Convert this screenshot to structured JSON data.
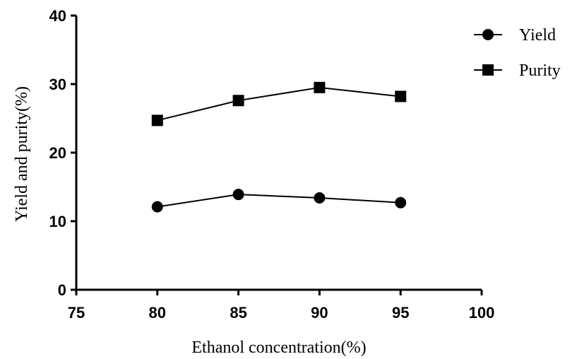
{
  "chart_data": {
    "type": "line",
    "x": [
      80,
      85,
      90,
      95
    ],
    "series": [
      {
        "name": "Yield",
        "marker": "circle",
        "values": [
          12.1,
          13.9,
          13.4,
          12.7
        ]
      },
      {
        "name": "Purity",
        "marker": "square",
        "values": [
          24.7,
          27.6,
          29.5,
          28.2
        ]
      }
    ],
    "xlabel": "Ethanol concentration(%)",
    "ylabel": "Yield and purity(%)",
    "xlim": [
      75,
      100
    ],
    "ylim": [
      0,
      40
    ],
    "xticks": [
      "75",
      "80",
      "85",
      "90",
      "95",
      "100"
    ],
    "yticks": [
      "0",
      "10",
      "20",
      "30",
      "40"
    ],
    "grid": false,
    "legend_position": "top-right",
    "color": "#000000"
  }
}
